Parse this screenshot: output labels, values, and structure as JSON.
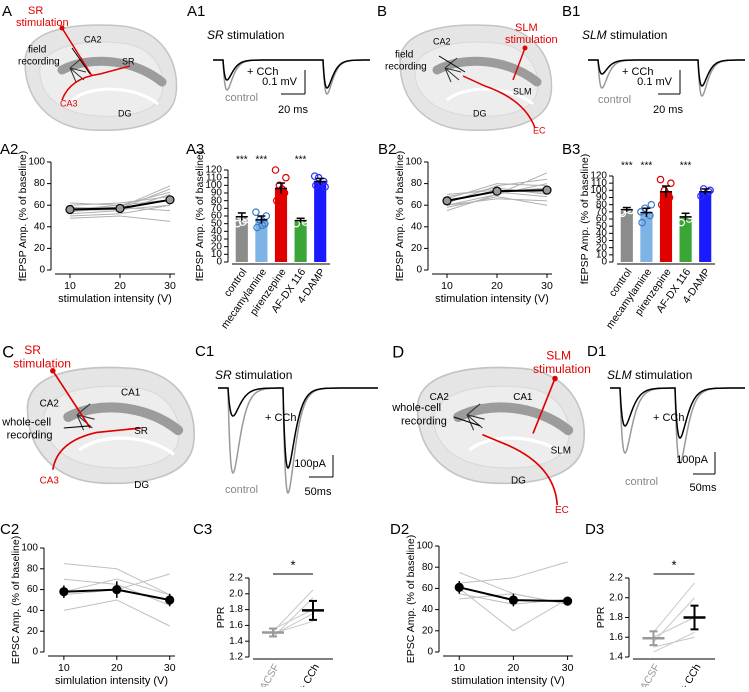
{
  "diagrams": [
    {
      "panel": "A",
      "stimulation": [
        "SR",
        "stimulation"
      ],
      "recording": [
        "field",
        "recording"
      ],
      "labels": [
        "CA2",
        "SR",
        "CA3",
        "DG"
      ],
      "label_colors": [
        "#000000",
        "#000000",
        "#e00000",
        "#000000"
      ]
    },
    {
      "panel": "B",
      "stimulation": [
        "SLM",
        "stimulation"
      ],
      "recording": [
        "field",
        "recording"
      ],
      "labels": [
        "CA2",
        "SLM",
        "DG",
        "EC"
      ],
      "label_colors": [
        "#000000",
        "#000000",
        "#000000",
        "#e00000"
      ]
    },
    {
      "panel": "C",
      "stimulation": [
        "SR",
        "stimulation"
      ],
      "recording": [
        "whole-cell",
        "recording"
      ],
      "labels": [
        "CA2",
        "CA1",
        "SR",
        "CA3",
        "DG"
      ],
      "label_colors": [
        "#000000",
        "#000000",
        "#000000",
        "#e00000",
        "#000000"
      ]
    },
    {
      "panel": "D",
      "stimulation": [
        "SLM",
        "stimulation"
      ],
      "recording": [
        "whole-cell",
        "recording"
      ],
      "labels": [
        "CA2",
        "CA1",
        "SLM",
        "DG",
        "EC"
      ],
      "label_colors": [
        "#000000",
        "#000000",
        "#000000",
        "#000000",
        "#e00000"
      ]
    }
  ],
  "traces": [
    {
      "panel": "A1",
      "title_italic": "SR",
      "title": "stimulation",
      "drug": "+ CCh",
      "control": "control",
      "scale_y": "0.1 mV",
      "scale_x": "20 ms"
    },
    {
      "panel": "B1",
      "title_italic": "SLM",
      "title": "stimulation",
      "drug": "+ CCh",
      "control": "control",
      "scale_y": "0.1 mV",
      "scale_x": "20 ms"
    },
    {
      "panel": "C1",
      "title_italic": "SR",
      "title": "stimulation",
      "drug": "+ CCh",
      "control": "control",
      "scale_y": "100pA",
      "scale_x": "50ms"
    },
    {
      "panel": "D1",
      "title_italic": "SLM",
      "title": "stimulation",
      "drug": "+ CCh",
      "control": "control",
      "scale_y": "100pA",
      "scale_x": "50ms"
    }
  ],
  "chart_data": [
    {
      "panel": "A2",
      "type": "line",
      "xlabel": "stimulation intensity (V)",
      "ylabel": "fEPSP Amp. (% of baseline)",
      "x": [
        10,
        20,
        30
      ],
      "xlim": [
        7,
        31
      ],
      "xticks": [
        10,
        20,
        30
      ],
      "ylim": [
        0,
        100
      ],
      "yticks": [
        0,
        20,
        40,
        60,
        80,
        100
      ],
      "series": [
        {
          "color": "#b0b0b0",
          "values": [
            55,
            56,
            60
          ]
        },
        {
          "color": "#b0b0b0",
          "values": [
            58,
            57,
            75
          ]
        },
        {
          "color": "#b0b0b0",
          "values": [
            52,
            55,
            70
          ]
        },
        {
          "color": "#b0b0b0",
          "values": [
            60,
            62,
            68
          ]
        },
        {
          "color": "#b0b0b0",
          "values": [
            50,
            52,
            60
          ]
        },
        {
          "color": "#b0b0b0",
          "values": [
            57,
            58,
            78
          ]
        },
        {
          "color": "#b0b0b0",
          "values": [
            48,
            50,
            45
          ]
        },
        {
          "color": "#b0b0b0",
          "values": [
            62,
            60,
            72
          ]
        },
        {
          "color": "#b0b0b0",
          "values": [
            54,
            58,
            55
          ]
        },
        {
          "color": "#b0b0b0",
          "values": [
            56,
            60,
            65
          ]
        },
        {
          "color": "#000000",
          "marker_color": "#999999",
          "values": [
            56,
            57,
            65
          ],
          "errors": [
            2,
            3,
            4
          ]
        }
      ]
    },
    {
      "panel": "A3",
      "type": "bar",
      "ylabel": "fEPSP Amp. (% of baseline)",
      "categories": [
        "control",
        "mecamylamine",
        "pirenzepine",
        "AF-DX 116",
        "4-DAMP"
      ],
      "values": [
        59,
        55,
        96,
        54,
        105
      ],
      "errors": [
        5,
        5,
        7,
        3,
        4
      ],
      "colors": [
        "#8c8c8c",
        "#7fb2e5",
        "#e00000",
        "#3aa635",
        "#1a1aff"
      ],
      "point_colors": [
        "#ffffff",
        "#3d7cc9",
        "#e00000",
        "#ffffff",
        "#2a2aff"
      ],
      "points": [
        [
          50,
          55,
          60,
          65,
          70,
          52,
          58,
          62
        ],
        [
          45,
          50,
          55,
          60,
          65,
          48
        ],
        [
          80,
          90,
          100,
          110,
          120,
          95
        ],
        [
          50,
          55,
          60,
          52
        ],
        [
          100,
          105,
          110,
          98,
          112
        ]
      ],
      "annotations": [
        "***",
        "***",
        null,
        "***",
        null
      ],
      "ylim": [
        0,
        120
      ],
      "yticks": [
        0,
        10,
        20,
        30,
        40,
        50,
        60,
        70,
        80,
        90,
        100,
        110,
        120
      ]
    },
    {
      "panel": "B2",
      "type": "line",
      "xlabel": "stimulation intensity (V)",
      "ylabel": "fEPSP Amp. (% of baseline)",
      "x": [
        10,
        20,
        30
      ],
      "xlim": [
        7,
        31
      ],
      "xticks": [
        10,
        20,
        30
      ],
      "ylim": [
        0,
        100
      ],
      "yticks": [
        0,
        20,
        40,
        60,
        80,
        100
      ],
      "series": [
        {
          "color": "#b0b0b0",
          "values": [
            60,
            70,
            80
          ]
        },
        {
          "color": "#b0b0b0",
          "values": [
            65,
            72,
            68
          ]
        },
        {
          "color": "#b0b0b0",
          "values": [
            62,
            78,
            84
          ]
        },
        {
          "color": "#b0b0b0",
          "values": [
            70,
            74,
            72
          ]
        },
        {
          "color": "#b0b0b0",
          "values": [
            58,
            68,
            60
          ]
        },
        {
          "color": "#b0b0b0",
          "values": [
            66,
            80,
            78
          ]
        },
        {
          "color": "#b0b0b0",
          "values": [
            55,
            70,
            90
          ]
        },
        {
          "color": "#b0b0b0",
          "values": [
            68,
            76,
            70
          ]
        },
        {
          "color": "#b0b0b0",
          "values": [
            60,
            66,
            64
          ]
        },
        {
          "color": "#b0b0b0",
          "values": [
            64,
            72,
            76
          ]
        },
        {
          "color": "#000000",
          "marker_color": "#999999",
          "values": [
            64,
            73,
            74
          ],
          "errors": [
            4,
            3,
            4
          ]
        }
      ]
    },
    {
      "panel": "B3",
      "type": "bar",
      "ylabel": "fEPSP Amp. (% of baseline)",
      "categories": [
        "control",
        "mecamylamine",
        "pirenzepine",
        "AF-DX 116",
        "4-DAMP"
      ],
      "values": [
        73,
        69,
        98,
        63,
        98
      ],
      "errors": [
        3,
        6,
        8,
        5,
        4
      ],
      "colors": [
        "#8c8c8c",
        "#7fb2e5",
        "#e00000",
        "#3aa635",
        "#1a1aff"
      ],
      "point_colors": [
        "#ffffff",
        "#3d7cc9",
        "#e00000",
        "#ffffff",
        "#2a2aff"
      ],
      "points": [
        [
          68,
          72,
          75,
          78,
          70,
          74
        ],
        [
          55,
          65,
          75,
          80,
          70
        ],
        [
          80,
          90,
          100,
          110,
          115,
          95
        ],
        [
          55,
          60,
          70,
          65
        ],
        [
          92,
          98,
          102,
          100
        ]
      ],
      "annotations": [
        "***",
        "***",
        null,
        "***",
        null
      ],
      "ylim": [
        0,
        120
      ],
      "yticks": [
        0,
        10,
        20,
        30,
        40,
        50,
        60,
        70,
        80,
        90,
        100,
        110,
        120
      ]
    },
    {
      "panel": "C2",
      "type": "line",
      "xlabel": "simlulation intensity (V)",
      "ylabel": "EPSC Amp. (% of baseline)",
      "x": [
        10,
        20,
        30
      ],
      "xlim": [
        7,
        31
      ],
      "xticks": [
        10,
        20,
        30
      ],
      "ylim": [
        0,
        100
      ],
      "yticks": [
        0,
        20,
        40,
        60,
        80,
        100
      ],
      "series": [
        {
          "color": "#c0c0c0",
          "values": [
            55,
            60,
            75
          ]
        },
        {
          "color": "#c0c0c0",
          "values": [
            70,
            65,
            45
          ]
        },
        {
          "color": "#c0c0c0",
          "values": [
            40,
            50,
            25
          ]
        },
        {
          "color": "#c0c0c0",
          "values": [
            58,
            70,
            55
          ]
        },
        {
          "color": "#c0c0c0",
          "values": [
            85,
            80,
            55
          ]
        },
        {
          "color": "#000000",
          "marker_color": "#000000",
          "values": [
            58,
            60,
            50
          ],
          "errors": [
            6,
            8,
            6
          ]
        }
      ]
    },
    {
      "panel": "C3",
      "type": "paired",
      "ylabel": "PPR",
      "categories": [
        "ACSF",
        "+ CCh"
      ],
      "colors": [
        "#999999",
        "#000000"
      ],
      "values": [
        1.51,
        1.79
      ],
      "errors": [
        0.05,
        0.12
      ],
      "pairs": [
        [
          1.45,
          1.95
        ],
        [
          1.5,
          1.65
        ],
        [
          1.55,
          1.8
        ],
        [
          1.52,
          2.05
        ],
        [
          1.48,
          1.75
        ]
      ],
      "significance": "*",
      "ylim": [
        1.2,
        2.2
      ],
      "yticks": [
        1.2,
        1.4,
        1.6,
        1.8,
        {
          "value": 2,
          "label": "2.0"
        },
        2.2
      ]
    },
    {
      "panel": "D2",
      "type": "line",
      "xlabel": "stimulation intensity (V)",
      "ylabel": "EPSC Amp. (% of baseline)",
      "x": [
        10,
        20,
        30
      ],
      "xlim": [
        7,
        31
      ],
      "xticks": [
        10,
        20,
        30
      ],
      "ylim": [
        0,
        100
      ],
      "yticks": [
        0,
        20,
        40,
        60,
        80,
        100
      ],
      "series": [
        {
          "color": "#c0c0c0",
          "values": [
            65,
            70,
            85
          ]
        },
        {
          "color": "#c0c0c0",
          "values": [
            75,
            55,
            45
          ]
        },
        {
          "color": "#c0c0c0",
          "values": [
            55,
            45,
            50
          ]
        },
        {
          "color": "#c0c0c0",
          "values": [
            60,
            20,
            50
          ]
        },
        {
          "color": "#c0c0c0",
          "values": [
            50,
            55,
            45
          ]
        },
        {
          "color": "#000000",
          "marker_color": "#000000",
          "values": [
            61,
            49,
            48
          ],
          "errors": [
            6,
            6,
            2
          ]
        }
      ]
    },
    {
      "panel": "D3",
      "type": "paired",
      "ylabel": "PPR",
      "categories": [
        "ACSF",
        "+ CCh"
      ],
      "colors": [
        "#999999",
        "#000000"
      ],
      "values": [
        1.59,
        1.8
      ],
      "errors": [
        0.07,
        0.12
      ],
      "pairs": [
        [
          1.5,
          1.6
        ],
        [
          1.55,
          2.0
        ],
        [
          1.65,
          2.15
        ],
        [
          1.6,
          1.8
        ],
        [
          1.45,
          1.65
        ]
      ],
      "significance": "*",
      "ylim": [
        1.4,
        2.2
      ],
      "yticks": [
        1.4,
        1.6,
        1.8,
        {
          "value": 2,
          "label": "2.0"
        },
        2.2
      ]
    }
  ]
}
